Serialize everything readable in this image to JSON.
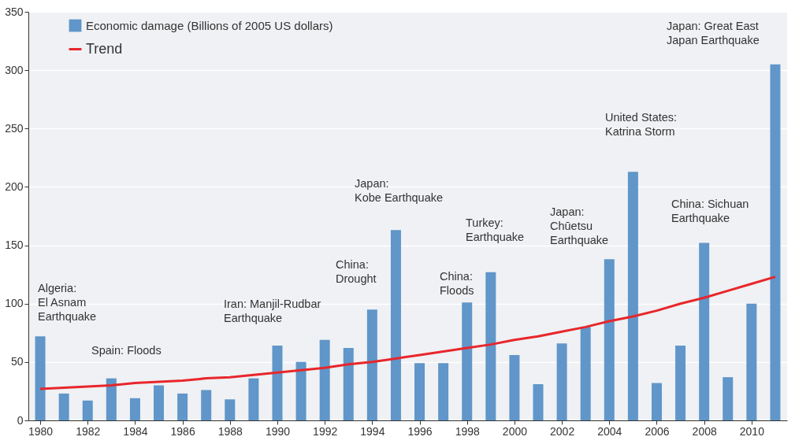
{
  "chart_data": {
    "type": "bar",
    "x": [
      1980,
      1981,
      1982,
      1983,
      1984,
      1985,
      1986,
      1987,
      1988,
      1989,
      1990,
      1991,
      1992,
      1993,
      1994,
      1995,
      1996,
      1997,
      1998,
      1999,
      2000,
      2001,
      2002,
      2003,
      2004,
      2005,
      2006,
      2007,
      2008,
      2009,
      2010,
      2011
    ],
    "series": [
      {
        "name": "Economic damage (Billions of 2005 US dollars)",
        "color": "#6096c9",
        "values": [
          72,
          23,
          17,
          36,
          19,
          30,
          23,
          26,
          18,
          36,
          64,
          50,
          69,
          62,
          95,
          163,
          49,
          49,
          101,
          127,
          56,
          31,
          66,
          80,
          138,
          213,
          32,
          64,
          152,
          37,
          100,
          305
        ]
      },
      {
        "name": "Trend",
        "type": "line",
        "color": "#e8262b",
        "values": [
          27,
          28,
          29,
          30,
          32,
          33,
          34,
          36,
          37,
          39,
          41,
          43,
          45,
          48,
          50,
          53,
          56,
          59,
          62,
          65,
          69,
          72,
          76,
          80,
          85,
          89,
          94,
          100,
          105,
          111,
          117,
          123
        ]
      }
    ],
    "xlim": [
      1979.5,
      2011.5
    ],
    "xticks": [
      1980,
      1982,
      1984,
      1986,
      1988,
      1990,
      1992,
      1994,
      1996,
      1998,
      2000,
      2002,
      2004,
      2006,
      2008,
      2010
    ],
    "ylim": [
      0,
      350
    ],
    "yticks": [
      0,
      50,
      100,
      150,
      200,
      250,
      300,
      350
    ],
    "grid": "y",
    "legend": "top left",
    "marker": "none",
    "line_style": "solid",
    "annotations": [
      "Algeria:\nEl Asnam\nEarthquake",
      "Spain: Floods",
      "Iran:  Manjil-Rudbar\nEarthquake",
      "China:\nDrought",
      "Japan:\nKobe Earthquake",
      "China:\nFloods",
      "Turkey:\nEarthquake",
      "Japan:\nChūetsu\nEarthquake",
      "United States:\nKatrina Storm",
      "China: Sichuan\nEarthquake",
      "Japan: Great East\nJapan Earthquake"
    ]
  }
}
